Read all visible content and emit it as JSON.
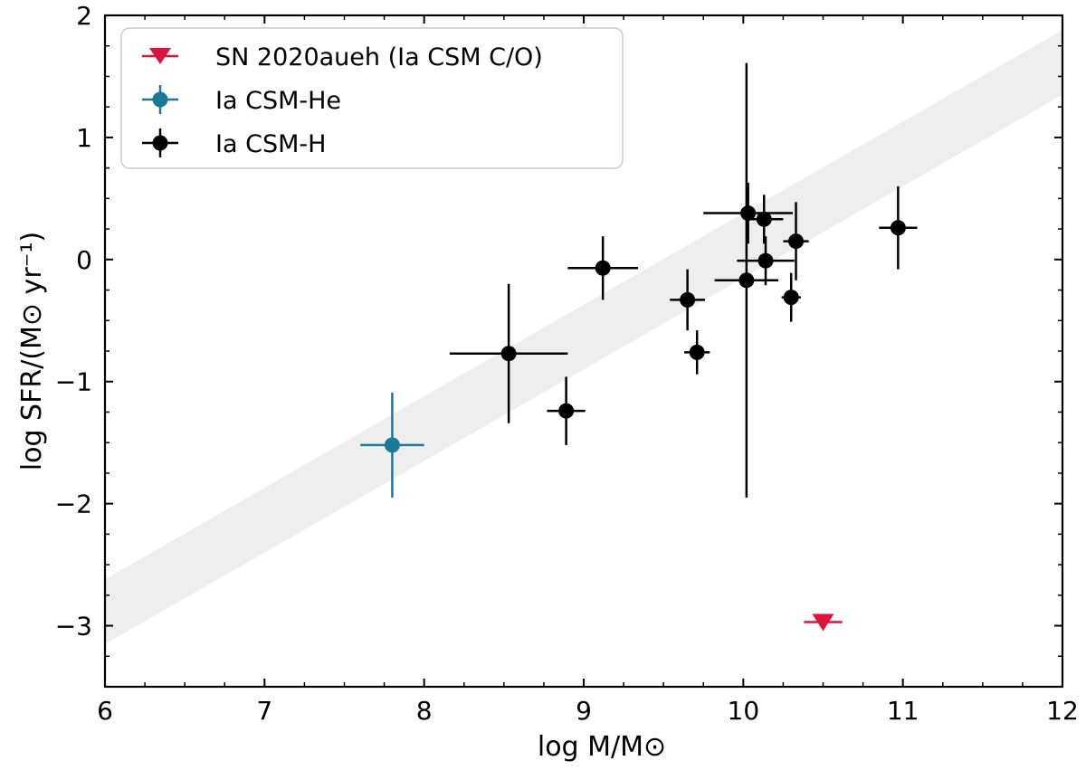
{
  "chart_data": {
    "type": "scatter",
    "xlabel": "log M/M⊙",
    "ylabel": "log SFR/(M⊙ yr⁻¹)",
    "xlim": [
      6,
      12
    ],
    "ylim": [
      -3.5,
      2
    ],
    "xticks": [
      6,
      7,
      8,
      9,
      10,
      11,
      12
    ],
    "yticks": [
      -3,
      -2,
      -1,
      0,
      1,
      2
    ],
    "xtick_labels": [
      "6",
      "7",
      "8",
      "9",
      "10",
      "11",
      "12"
    ],
    "ytick_labels": [
      "−3",
      "−2",
      "−1",
      "0",
      "1",
      "2"
    ],
    "band": {
      "slope": 0.75,
      "lower_at_6": -3.15,
      "upper_at_6": -2.62,
      "color": "#eeeeee"
    },
    "legend": {
      "position": "top-left",
      "entries": [
        {
          "label": "SN 2020aueh (Ia CSM C/O)",
          "color": "#dc143c",
          "marker": "triangle-down"
        },
        {
          "label": "Ia CSM-He",
          "color": "#1a7a96",
          "marker": "circle"
        },
        {
          "label": "Ia CSM-H",
          "color": "#000000",
          "marker": "circle"
        }
      ]
    },
    "series": [
      {
        "name": "SN 2020aueh (Ia CSM C/O)",
        "color": "#dc143c",
        "marker": "triangle-down",
        "points": [
          {
            "x": 10.5,
            "y": -2.97,
            "xerr": 0.12,
            "yerr": 0
          }
        ]
      },
      {
        "name": "Ia CSM-He",
        "color": "#1a7a96",
        "marker": "circle",
        "points": [
          {
            "x": 7.8,
            "y": -1.52,
            "xerr": 0.2,
            "yerr": 0.43
          }
        ]
      },
      {
        "name": "Ia CSM-H",
        "color": "#000000",
        "marker": "circle",
        "points": [
          {
            "x": 8.53,
            "y": -0.77,
            "xerr": 0.37,
            "yerr": 0.57
          },
          {
            "x": 8.89,
            "y": -1.24,
            "xerr": 0.12,
            "yerr": 0.28
          },
          {
            "x": 9.12,
            "y": -0.07,
            "xerr": 0.22,
            "yerr": 0.26
          },
          {
            "x": 9.65,
            "y": -0.33,
            "xerr": 0.11,
            "yerr": 0.25
          },
          {
            "x": 9.71,
            "y": -0.76,
            "xerr": 0.08,
            "yerr": 0.18
          },
          {
            "x": 10.02,
            "y": -0.17,
            "xerr": 0.2,
            "yerr": 1.78
          },
          {
            "x": 10.03,
            "y": 0.38,
            "xerr": 0.28,
            "yerr": 0.25
          },
          {
            "x": 10.13,
            "y": 0.33,
            "xerr": 0.12,
            "yerr": 0.2
          },
          {
            "x": 10.14,
            "y": -0.01,
            "xerr": 0.18,
            "yerr": 0.2
          },
          {
            "x": 10.3,
            "y": -0.31,
            "xerr": 0.06,
            "yerr": 0.2
          },
          {
            "x": 10.33,
            "y": 0.15,
            "xerr": 0.08,
            "yerr": 0.32
          },
          {
            "x": 10.97,
            "y": 0.26,
            "xerr": 0.12,
            "yerr": 0.34
          }
        ]
      }
    ]
  }
}
